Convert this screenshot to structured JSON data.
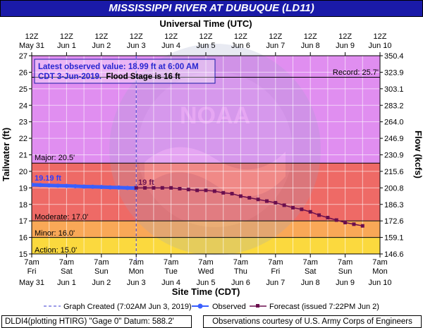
{
  "title": "MISSISSIPPI RIVER AT DUBUQUE (LD11)",
  "top_axis_title": "Universal Time (UTC)",
  "bottom_axis_title": "Site Time (CDT)",
  "left_axis_title": "Tailwater (ft)",
  "right_axis_title": "Flow (kcfs)",
  "top_ticks": [
    {
      "l1": "12Z",
      "l2": "May 31"
    },
    {
      "l1": "12Z",
      "l2": "Jun 1"
    },
    {
      "l1": "12Z",
      "l2": "Jun 2"
    },
    {
      "l1": "12Z",
      "l2": "Jun 3"
    },
    {
      "l1": "12Z",
      "l2": "Jun 4"
    },
    {
      "l1": "12Z",
      "l2": "Jun 5"
    },
    {
      "l1": "12Z",
      "l2": "Jun 6"
    },
    {
      "l1": "12Z",
      "l2": "Jun 7"
    },
    {
      "l1": "12Z",
      "l2": "Jun 8"
    },
    {
      "l1": "12Z",
      "l2": "Jun 9"
    },
    {
      "l1": "12Z",
      "l2": "Jun 10"
    }
  ],
  "bottom_ticks": [
    {
      "l1": "7am",
      "l2": "Fri",
      "l3": "May 31"
    },
    {
      "l1": "7am",
      "l2": "Sat",
      "l3": "Jun 1"
    },
    {
      "l1": "7am",
      "l2": "Sun",
      "l3": "Jun 2"
    },
    {
      "l1": "7am",
      "l2": "Mon",
      "l3": "Jun 3"
    },
    {
      "l1": "7am",
      "l2": "Tue",
      "l3": "Jun 4"
    },
    {
      "l1": "7am",
      "l2": "Wed",
      "l3": "Jun 5"
    },
    {
      "l1": "7am",
      "l2": "Thu",
      "l3": "Jun 6"
    },
    {
      "l1": "7am",
      "l2": "Fri",
      "l3": "Jun 7"
    },
    {
      "l1": "7am",
      "l2": "Sat",
      "l3": "Jun 8"
    },
    {
      "l1": "7am",
      "l2": "Sun",
      "l3": "Jun 9"
    },
    {
      "l1": "7am",
      "l2": "Mon",
      "l3": "Jun 10"
    }
  ],
  "left_ticks": [
    "27",
    "26",
    "25",
    "24",
    "23",
    "22",
    "21",
    "20",
    "19",
    "18",
    "17",
    "16",
    "15"
  ],
  "right_ticks": [
    "350.4",
    "323.9",
    "303.1",
    "283.2",
    "264.0",
    "246.9",
    "230.9",
    "215.6",
    "200.8",
    "186.3",
    "172.6",
    "159.1",
    "146.6"
  ],
  "info_box": {
    "line1": "Latest observed value: 18.99 ft at 6:00 AM",
    "line2_a": "CDT 3-Jun-2019.",
    "line2_b": "Flood Stage is 16 ft"
  },
  "labels": {
    "record": "Record: 25.7'",
    "major": "Major: 20.5'",
    "moderate": "Moderate: 17.0'",
    "minor": "Minor: 16.0'",
    "action": "Action: 15.0'",
    "observed_value": "19.19 ft",
    "forecast_value": "19 ft"
  },
  "legend": {
    "created": "Graph Created (7:02AM Jun 3, 2019)",
    "observed": "Observed",
    "forecast": "Forecast (issued 7:22PM Jun 2)"
  },
  "footer": {
    "left": "DLDI4(plotting HTIRG) \"Gage 0\" Datum: 588.2'",
    "right": "Observations courtesy of U.S. Army Corps of Engineers"
  },
  "colors": {
    "title_bg": "#1a1aa8",
    "record_zone": "#e08ef0",
    "major_zone": "#ee6a66",
    "moderate_zone": "#f9a857",
    "minor_zone": "#fbd93e",
    "action_zone": "#fcf27a",
    "observed": "#3a5fff",
    "forecast": "#6b0f4e"
  },
  "chart_data": {
    "type": "line",
    "x_unit": "days since 7am CDT Fri May 31",
    "xlim": [
      0,
      10
    ],
    "ylim": [
      15,
      27
    ],
    "thresholds": {
      "record": 25.7,
      "major": 20.5,
      "moderate": 17.0,
      "minor": 16.0,
      "action": 15.0,
      "flood_stage": 16
    },
    "graph_created_x": 3.0,
    "series": [
      {
        "name": "Observed",
        "x": [
          0,
          0.25,
          0.5,
          0.75,
          1,
          1.25,
          1.5,
          1.75,
          2,
          2.25,
          2.5,
          2.75,
          2.958
        ],
        "y": [
          19.19,
          19.17,
          19.15,
          19.13,
          19.12,
          19.1,
          19.08,
          19.07,
          19.05,
          19.03,
          19.02,
          19.0,
          18.99
        ]
      },
      {
        "name": "Forecast",
        "x": [
          3.0,
          3.25,
          3.5,
          3.75,
          4.0,
          4.25,
          4.5,
          4.75,
          5.0,
          5.25,
          5.5,
          5.75,
          6.0,
          6.25,
          6.5,
          6.75,
          7.0,
          7.25,
          7.5,
          7.75,
          8.0,
          8.25,
          8.5,
          8.75,
          9.0,
          9.25,
          9.5
        ],
        "y": [
          19.0,
          19.0,
          19.0,
          19.0,
          19.0,
          18.95,
          18.9,
          18.85,
          18.85,
          18.8,
          18.7,
          18.65,
          18.5,
          18.4,
          18.3,
          18.2,
          18.1,
          17.95,
          17.8,
          17.7,
          17.55,
          17.35,
          17.2,
          17.05,
          16.9,
          16.8,
          16.7
        ]
      }
    ]
  }
}
